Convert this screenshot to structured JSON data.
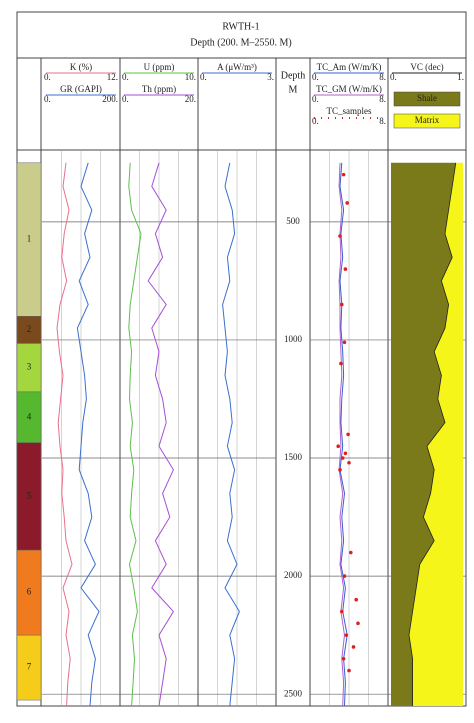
{
  "header": {
    "title": "RWTH-1",
    "subtitle": "Depth (200. M–2550. M)"
  },
  "chart_data": {
    "type": "line",
    "depth": {
      "label": "Depth",
      "unit": "M",
      "ylim": [
        200,
        2550
      ],
      "yticks": [
        500,
        1000,
        1500,
        2000,
        2500
      ]
    },
    "zones": [
      {
        "label": "1",
        "top": 250,
        "bottom": 900,
        "color": "#c9cc8a"
      },
      {
        "label": "2",
        "top": 900,
        "bottom": 1015,
        "color": "#7b4a1c"
      },
      {
        "label": "3",
        "top": 1015,
        "bottom": 1220,
        "color": "#a3d63f"
      },
      {
        "label": "4",
        "top": 1220,
        "bottom": 1435,
        "color": "#55b82f"
      },
      {
        "label": "5",
        "top": 1435,
        "bottom": 1890,
        "color": "#8b1a2b"
      },
      {
        "label": "6",
        "top": 1890,
        "bottom": 2250,
        "color": "#f07a1e"
      },
      {
        "label": "7",
        "top": 2250,
        "bottom": 2525,
        "color": "#f5cc1a"
      }
    ],
    "depths": [
      250,
      350,
      450,
      550,
      650,
      750,
      850,
      950,
      1050,
      1150,
      1250,
      1350,
      1450,
      1550,
      1650,
      1750,
      1850,
      1950,
      2050,
      2150,
      2250,
      2350,
      2450,
      2550
    ],
    "tracks": [
      {
        "series": [
          {
            "name": "K (%)",
            "color": "#e8708a",
            "xlim": [
              0,
              12
            ],
            "xticks": [
              {
                "value": 0,
                "label": "0."
              },
              {
                "value": 12,
                "label": "12."
              }
            ],
            "values": [
              3.5,
              3.0,
              4.0,
              3.2,
              2.8,
              3.6,
              2.5,
              2.0,
              2.4,
              3.0,
              2.6,
              2.2,
              2.5,
              3.0,
              2.8,
              3.2,
              3.5,
              4.5,
              3.0,
              4.0,
              3.5,
              4.2,
              3.8,
              3.6
            ]
          },
          {
            "name": "GR (GAPI)",
            "color": "#3a6fd0",
            "xlim": [
              0,
              200
            ],
            "xticks": [
              {
                "value": 0,
                "label": "0."
              },
              {
                "value": 200,
                "label": "200."
              }
            ],
            "values": [
              120,
              100,
              130,
              110,
              125,
              95,
              120,
              90,
              100,
              110,
              115,
              105,
              100,
              95,
              120,
              130,
              110,
              140,
              100,
              150,
              120,
              140,
              130,
              125
            ]
          }
        ]
      },
      {
        "series": [
          {
            "name": "U (ppm)",
            "color": "#5cc04a",
            "xlim": [
              0,
              10
            ],
            "xticks": [
              {
                "value": 0,
                "label": "0."
              },
              {
                "value": 10,
                "label": "10."
              }
            ],
            "values": [
              1.0,
              0.8,
              1.2,
              2.5,
              2.0,
              1.5,
              1.0,
              0.8,
              1.2,
              1.0,
              0.9,
              1.3,
              1.0,
              1.5,
              1.2,
              1.0,
              1.8,
              0.9,
              1.5,
              2.0,
              1.3,
              1.6,
              1.4,
              1.2
            ]
          },
          {
            "name": "Th (ppm)",
            "color": "#a64fd6",
            "xlim": [
              0,
              20
            ],
            "xticks": [
              {
                "value": 0,
                "label": "0."
              },
              {
                "value": 20,
                "label": "20."
              }
            ],
            "values": [
              10,
              8,
              12,
              9,
              11,
              7,
              12,
              8,
              10,
              9,
              11,
              12,
              10,
              14,
              11,
              13,
              9,
              12,
              8,
              14,
              10,
              12,
              11,
              10
            ]
          }
        ]
      },
      {
        "series": [
          {
            "name": "A (μW/m³)",
            "color": "#3a6fd0",
            "xlim": [
              0,
              3
            ],
            "xticks": [
              {
                "value": 0,
                "label": "0."
              },
              {
                "value": 3,
                "label": "3."
              }
            ],
            "values": [
              1.2,
              1.0,
              1.3,
              1.4,
              1.1,
              1.2,
              0.9,
              1.0,
              1.1,
              1.0,
              1.2,
              1.3,
              1.1,
              1.4,
              1.2,
              1.3,
              1.1,
              1.5,
              1.0,
              1.6,
              1.2,
              1.4,
              1.3,
              1.2
            ]
          }
        ]
      },
      {
        "series": [
          {
            "name": "TC_Am (W/m/K)",
            "color": "#3a5fd0",
            "xlim": [
              0,
              8
            ],
            "xticks": [
              {
                "value": 0,
                "label": "0."
              },
              {
                "value": 8,
                "label": "8."
              }
            ],
            "values": [
              3.2,
              3.0,
              3.4,
              3.1,
              3.3,
              3.0,
              3.2,
              3.1,
              3.3,
              3.4,
              3.2,
              3.1,
              3.3,
              3.0,
              3.5,
              3.2,
              3.4,
              3.1,
              3.6,
              3.3,
              3.8,
              3.4,
              3.6,
              3.5
            ]
          },
          {
            "name": "TC_GM (W/m/K)",
            "color": "#b060d0",
            "xlim": [
              0,
              8
            ],
            "xticks": [
              {
                "value": 0,
                "label": "0."
              },
              {
                "value": 8,
                "label": "8."
              }
            ],
            "values": [
              3.0,
              2.9,
              3.2,
              3.0,
              3.1,
              2.9,
              3.0,
              3.0,
              3.1,
              3.2,
              3.0,
              3.0,
              3.1,
              2.9,
              3.3,
              3.0,
              3.2,
              3.0,
              3.4,
              3.1,
              3.5,
              3.2,
              3.4,
              3.3
            ]
          },
          {
            "name": "TC_samples",
            "type": "scatter",
            "color": "#e02020",
            "xlim": [
              0,
              8
            ],
            "xticks": [
              {
                "value": 0,
                "label": "0."
              },
              {
                "value": 8,
                "label": "8."
              }
            ],
            "depths": [
              300,
              420,
              560,
              700,
              850,
              1010,
              1100,
              1400,
              1450,
              1480,
              1500,
              1520,
              1550,
              1900,
              2000,
              2100,
              2150,
              2200,
              2250,
              2300,
              2350,
              2400
            ],
            "values": [
              3.4,
              3.8,
              3.0,
              3.6,
              3.2,
              3.5,
              3.1,
              3.9,
              2.8,
              3.6,
              3.3,
              4.0,
              3.0,
              4.2,
              3.5,
              4.8,
              3.2,
              5.0,
              3.7,
              4.5,
              3.4,
              4.0
            ]
          }
        ]
      },
      {
        "series": [
          {
            "name": "VC (dec)",
            "type": "area",
            "color": "#222222",
            "xlim": [
              0,
              1
            ],
            "xticks": [
              {
                "value": 0,
                "label": "0."
              },
              {
                "value": 1,
                "label": "1."
              }
            ],
            "fills": [
              {
                "name": "Shale",
                "color": "#7a7a1a"
              },
              {
                "name": "Matrix",
                "color": "#f5f51a"
              }
            ],
            "values": [
              0.9,
              0.85,
              0.8,
              0.75,
              0.85,
              0.7,
              0.8,
              0.75,
              0.6,
              0.7,
              0.65,
              0.75,
              0.5,
              0.6,
              0.55,
              0.45,
              0.6,
              0.4,
              0.35,
              0.3,
              0.25,
              0.3,
              0.3,
              0.3
            ]
          }
        ]
      }
    ]
  }
}
